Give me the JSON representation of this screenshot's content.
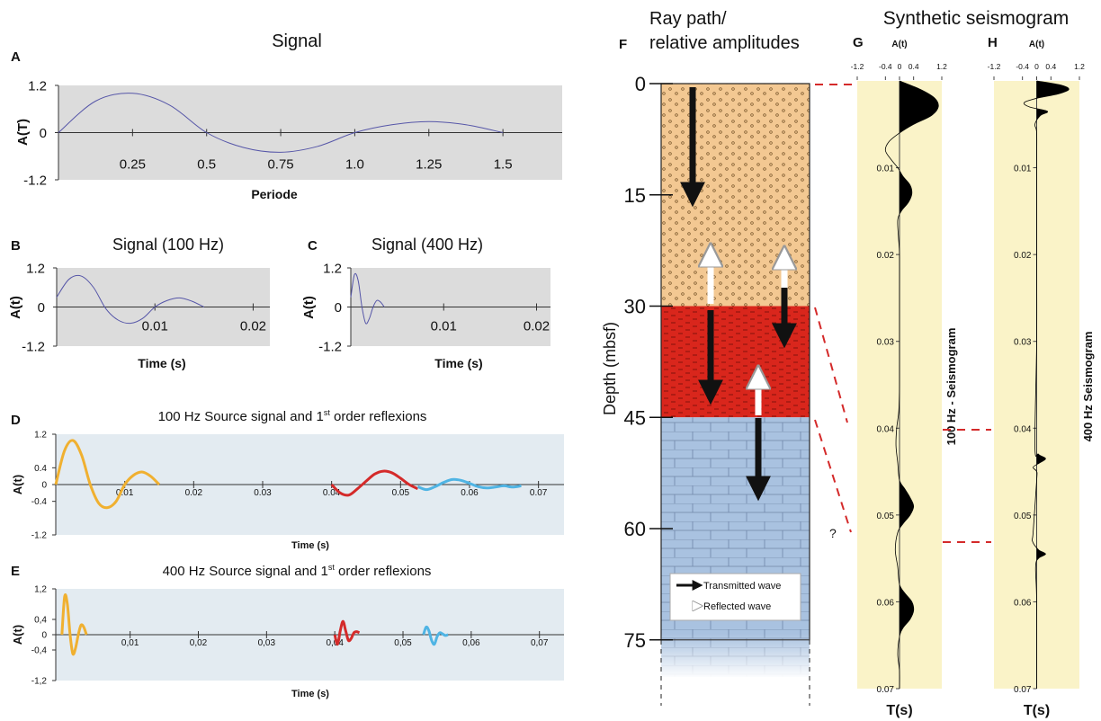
{
  "figure_heading": "Synthetic seismogram",
  "chart_data": [
    {
      "type": "line",
      "panel": "A",
      "title": "Signal",
      "xlabel": "Periode",
      "ylabel": "A(T)",
      "background": "#dcdcdc",
      "xlim": [
        0,
        1.7
      ],
      "ylim": [
        -1.2,
        1.2
      ],
      "xticks": [
        0.25,
        0.5,
        0.75,
        {
          "value": 1,
          "label": "1.0"
        },
        1.25,
        1.5
      ],
      "yticks": [
        1.2,
        0,
        -1.2
      ],
      "series": [
        {
          "color": "#5656a8",
          "x": [
            0,
            0.125,
            0.25,
            0.375,
            0.5,
            0.625,
            0.75,
            0.875,
            1,
            1.125,
            1.25,
            1.375,
            1.5
          ],
          "values": [
            0,
            0.8,
            1.0,
            0.7,
            0,
            -0.38,
            -0.5,
            -0.35,
            0,
            0.2,
            0.28,
            0.2,
            0
          ]
        }
      ]
    },
    {
      "type": "line",
      "panel": "B",
      "title": "Signal (100 Hz)",
      "xlabel": "Time (s)",
      "ylabel": "A(t)",
      "background": "#dcdcdc",
      "xlim": [
        0,
        0.0217
      ],
      "ylim": [
        -1.2,
        1.2
      ],
      "xticks": [
        0.01,
        0.02
      ],
      "yticks": [
        1.2,
        0,
        -1.2
      ],
      "series": [
        {
          "color": "#5656a8",
          "x": [
            0,
            0.00125,
            0.0025,
            0.00375,
            0.005,
            0.00625,
            0.0075,
            0.00875,
            0.01,
            0.01125,
            0.0125,
            0.01375,
            0.015
          ],
          "values": [
            0.3,
            0.85,
            0.95,
            0.6,
            -0.05,
            -0.4,
            -0.5,
            -0.35,
            0,
            0.2,
            0.28,
            0.18,
            0
          ]
        }
      ]
    },
    {
      "type": "line",
      "panel": "C",
      "title": "Signal (400 Hz)",
      "xlabel": "Time (s)",
      "ylabel": "A(t)",
      "background": "#dcdcdc",
      "xlim": [
        0,
        0.0215
      ],
      "ylim": [
        -1.2,
        1.2
      ],
      "xticks": [
        0.01,
        0.02
      ],
      "yticks": [
        1.2,
        0,
        -1.2
      ],
      "series": [
        {
          "color": "#5656a8",
          "x": [
            0,
            0.0004,
            0.0008,
            0.0012,
            0.0016,
            0.002,
            0.0024,
            0.0028,
            0.0032,
            0.0036
          ],
          "values": [
            0.3,
            1.0,
            0.8,
            0,
            -0.5,
            -0.35,
            0,
            0.2,
            0.15,
            0
          ]
        }
      ]
    },
    {
      "type": "line",
      "panel": "D",
      "title": [
        "100 Hz Source signal and  1",
        "st",
        " order reflexions"
      ],
      "xlabel": "Time (s)",
      "ylabel": "A(t)",
      "background": "#e3ebf1",
      "xlim": [
        0,
        0.0737
      ],
      "ylim": [
        -1.2,
        1.2
      ],
      "xticks": [
        0.01,
        0.02,
        0.03,
        0.04,
        0.05,
        0.06,
        0.07
      ],
      "yticks": [
        1.2,
        0.4,
        0,
        -0.4,
        -1.2
      ],
      "series": [
        {
          "color": "#f0b030",
          "x": [
            0,
            0.00125,
            0.0025,
            0.00375,
            0.005,
            0.00625,
            0.0075,
            0.00875,
            0.01,
            0.01125,
            0.0125,
            0.01375,
            0.015
          ],
          "values": [
            0,
            0.8,
            1.05,
            0.7,
            0,
            -0.45,
            -0.55,
            -0.4,
            0,
            0.22,
            0.3,
            0.2,
            0
          ]
        },
        {
          "color": "#d42a2a",
          "x": [
            0.04,
            0.04125,
            0.0425,
            0.04375,
            0.045,
            0.04625,
            0.0475,
            0.04875,
            0.05,
            0.05125,
            0.0525
          ],
          "values": [
            0,
            -0.2,
            -0.25,
            -0.1,
            0.08,
            0.25,
            0.32,
            0.28,
            0.15,
            0,
            -0.1
          ]
        },
        {
          "color": "#4fb4e4",
          "x": [
            0.0525,
            0.05375,
            0.055,
            0.05625,
            0.0575,
            0.05875,
            0.06,
            0.06125,
            0.0625,
            0.06375,
            0.065,
            0.06625,
            0.0675
          ],
          "values": [
            -0.05,
            -0.12,
            -0.05,
            0.05,
            0.12,
            0.1,
            0.03,
            -0.05,
            -0.08,
            -0.06,
            -0.03,
            -0.06,
            -0.03
          ]
        }
      ]
    },
    {
      "type": "line",
      "panel": "E",
      "title": [
        "400 Hz Source signal and  1",
        "st",
        " order reflexions"
      ],
      "xlabel": "Time (s)",
      "ylabel": "A(t)",
      "background": "#e3ebf1",
      "xlim": [
        -0.0009,
        0.0736
      ],
      "ylim": [
        -1.2,
        1.2
      ],
      "xticks": [
        {
          "value": 0.01,
          "label": "0,01"
        },
        {
          "value": 0.02,
          "label": "0,02"
        },
        {
          "value": 0.03,
          "label": "0,03"
        },
        {
          "value": 0.04,
          "label": "0,04"
        },
        {
          "value": 0.05,
          "label": "0,05"
        },
        {
          "value": 0.06,
          "label": "0,06"
        },
        {
          "value": 0.07,
          "label": "0,07"
        }
      ],
      "yticks": [
        {
          "value": 1.2,
          "label": "1,2"
        },
        {
          "value": 0.4,
          "label": "0,4"
        },
        0,
        {
          "value": -0.4,
          "label": "-0,4"
        },
        {
          "value": -1.2,
          "label": "-1,2"
        }
      ],
      "series": [
        {
          "color": "#f0b030",
          "x": [
            0,
            0.0004,
            0.0008,
            0.0012,
            0.0016,
            0.002,
            0.0024,
            0.0028,
            0.0032,
            0.0036
          ],
          "values": [
            0,
            1.0,
            0.8,
            0,
            -0.5,
            -0.35,
            0,
            0.25,
            0.2,
            0
          ]
        },
        {
          "color": "#d42a2a",
          "x": [
            0.04,
            0.0404,
            0.0408,
            0.0412,
            0.0416,
            0.042,
            0.0424,
            0.0428,
            0.0432,
            0.0436
          ],
          "values": [
            0,
            -0.25,
            0.1,
            0.35,
            0.1,
            -0.15,
            -0.1,
            0.05,
            0.08,
            0.05
          ]
        },
        {
          "color": "#4fb4e4",
          "x": [
            0.053,
            0.0534,
            0.0538,
            0.0542,
            0.0546,
            0.055,
            0.0554,
            0.0558,
            0.0562,
            0.0566
          ],
          "values": [
            0,
            0.2,
            0.1,
            -0.15,
            -0.25,
            -0.05,
            0.05,
            0.02,
            -0.02,
            0
          ]
        }
      ]
    },
    {
      "type": "depth-column",
      "panel": "F",
      "title": [
        "Ray path/",
        "relative amplitudes"
      ],
      "ylabel": "Depth (mbsf)",
      "ylim": [
        0,
        80
      ],
      "yticks": [
        0,
        15,
        30,
        45,
        60,
        75
      ],
      "layers": [
        {
          "from": 0,
          "to": 30,
          "color": "#f3c892"
        },
        {
          "from": 30,
          "to": 45,
          "color": "#d9261c"
        },
        {
          "from": 45,
          "to": 80,
          "color": "#a9c2e0"
        }
      ],
      "legend": [
        "Transmitted wave",
        "Reflected wave"
      ],
      "annotation": "?"
    },
    {
      "type": "seismogram",
      "panel": "G",
      "xlabel": "T(s)",
      "ylabel": "A(t)",
      "side_label": "100 Hz - Seismogram",
      "background": "#faf3c8",
      "xlim": [
        0,
        0.07
      ],
      "ylim": [
        -1.2,
        1.2
      ],
      "xticks": [
        0.01,
        0.02,
        0.03,
        0.04,
        0.05,
        0.06,
        0.07
      ],
      "yticks": [
        -1.2,
        -0.4,
        0,
        0.4,
        1.2
      ],
      "series": [
        {
          "color": "#000000",
          "x": [
            0,
            0.001,
            0.002,
            0.003,
            0.004,
            0.005,
            0.006,
            0.007,
            0.008,
            0.009,
            0.01,
            0.011,
            0.012,
            0.013,
            0.014,
            0.015,
            0.016,
            0.018,
            0.02,
            0.025,
            0.03,
            0.035,
            0.038,
            0.04,
            0.042,
            0.044,
            0.046,
            0.047,
            0.048,
            0.049,
            0.05,
            0.051,
            0.052,
            0.054,
            0.056,
            0.058,
            0.059,
            0.06,
            0.061,
            0.062,
            0.063,
            0.064,
            0.066,
            0.068,
            0.07
          ],
          "values": [
            0,
            0.6,
            1.0,
            1.1,
            0.9,
            0.4,
            0,
            -0.3,
            -0.4,
            -0.25,
            -0.05,
            0.1,
            0.3,
            0.35,
            0.25,
            0.05,
            -0.05,
            -0.03,
            0,
            0,
            0,
            0,
            -0.02,
            -0.08,
            -0.1,
            -0.05,
            0,
            0.15,
            0.3,
            0.4,
            0.3,
            0.1,
            -0.05,
            -0.12,
            -0.05,
            0,
            0.15,
            0.35,
            0.4,
            0.3,
            0.1,
            0,
            -0.05,
            0,
            0
          ]
        }
      ]
    },
    {
      "type": "seismogram",
      "panel": "H",
      "xlabel": "T(s)",
      "ylabel": "A(t)",
      "side_label": "400 Hz Seismogram",
      "background": "#faf3c8",
      "xlim": [
        0,
        0.07
      ],
      "ylim": [
        -1.2,
        1.2
      ],
      "xticks": [
        0.01,
        0.02,
        0.03,
        0.04,
        0.05,
        0.06,
        0.07
      ],
      "yticks": [
        -1.2,
        -0.4,
        0,
        0.4,
        1.2
      ],
      "series": [
        {
          "color": "#000000",
          "x": [
            0,
            0.0005,
            0.001,
            0.0015,
            0.002,
            0.0025,
            0.003,
            0.0035,
            0.004,
            0.005,
            0.006,
            0.01,
            0.02,
            0.03,
            0.042,
            0.043,
            0.0435,
            0.044,
            0.0445,
            0.045,
            0.046,
            0.052,
            0.053,
            0.054,
            0.0545,
            0.055,
            0.056,
            0.06,
            0.07
          ],
          "values": [
            0,
            0.7,
            0.9,
            0.6,
            0,
            -0.35,
            -0.2,
            0.3,
            0.1,
            -0.05,
            0,
            0,
            0,
            0,
            -0.05,
            0.05,
            0.25,
            0.08,
            -0.1,
            0,
            0,
            -0.1,
            -0.12,
            0.05,
            0.25,
            0.05,
            -0.03,
            0,
            0
          ]
        }
      ]
    }
  ]
}
